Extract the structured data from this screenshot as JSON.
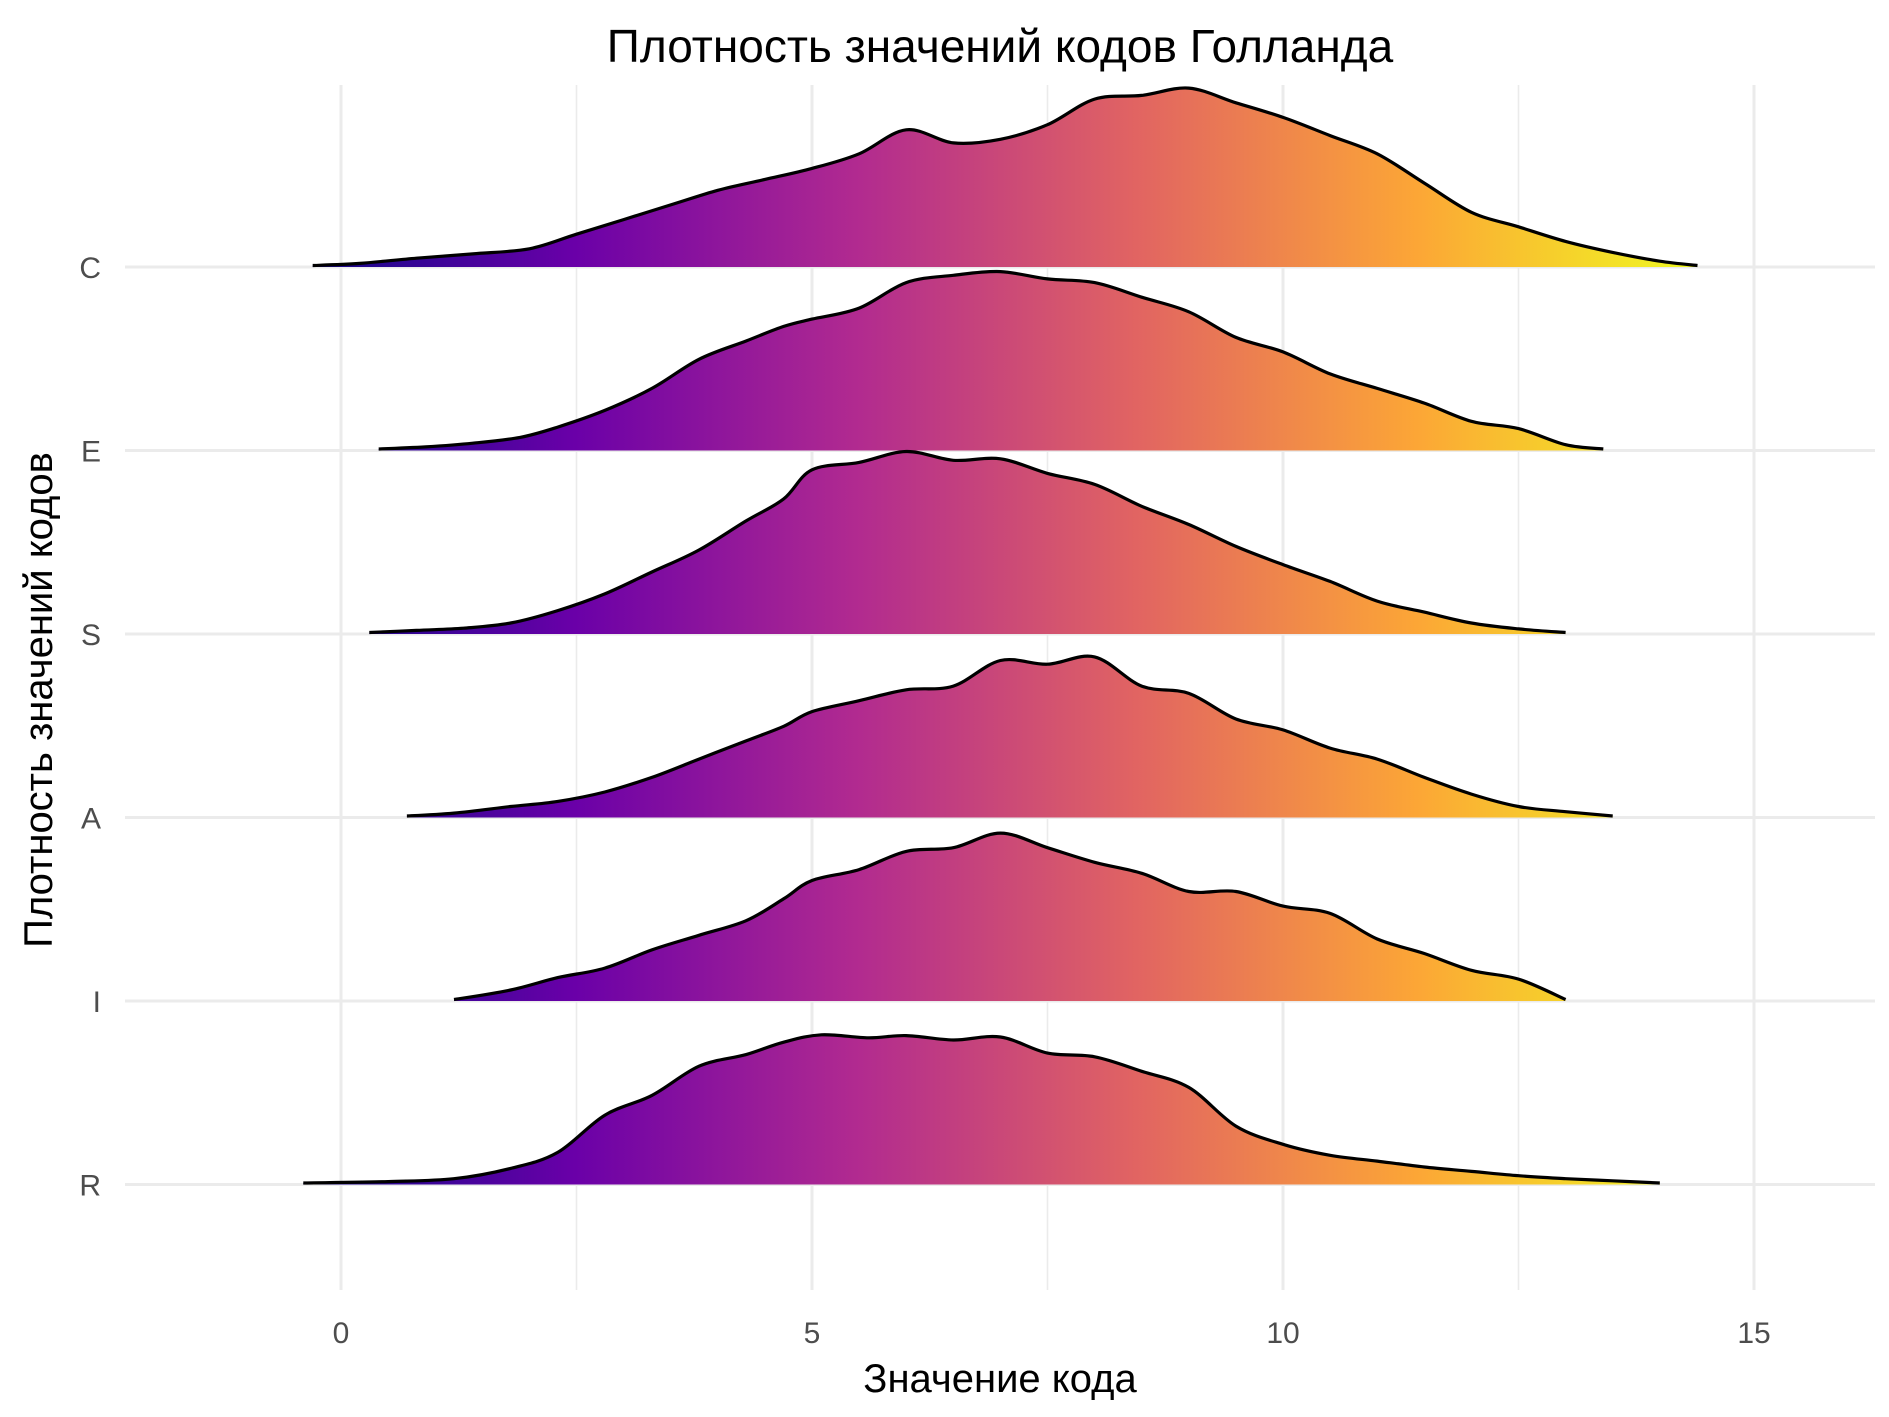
{
  "chart_data": {
    "type": "ridgeline",
    "title": "Плотность значений кодов Голланда",
    "xlabel": "Значение кода",
    "ylabel": "Плотность значений кодов",
    "xlim": [
      -2.3,
      16.3
    ],
    "x_ticks": [
      0,
      5,
      10,
      15
    ],
    "x_tick_labels": [
      "0",
      "5",
      "10",
      "15"
    ],
    "categories": [
      "R",
      "I",
      "A",
      "S",
      "E",
      "C"
    ],
    "grid": true,
    "legend": "none",
    "fill_gradient": {
      "colormap": "plasma",
      "range": [
        -0.5,
        14.4
      ],
      "stops": [
        "#0d0887",
        "#6a00a8",
        "#b12a90",
        "#e16462",
        "#fca636",
        "#f0f921"
      ]
    },
    "series": [
      {
        "category": "R",
        "x": [
          -0.4,
          0.5,
          1.2,
          1.8,
          2.3,
          2.8,
          3.3,
          3.8,
          4.3,
          4.7,
          5.1,
          5.6,
          6.0,
          6.5,
          7.0,
          7.5,
          8.0,
          8.5,
          9.0,
          9.5,
          10.0,
          10.5,
          11.0,
          11.5,
          12.0,
          12.5,
          13.0,
          13.5,
          14.0
        ],
        "y": [
          0.02,
          0.04,
          0.08,
          0.22,
          0.44,
          0.95,
          1.22,
          1.62,
          1.78,
          1.95,
          2.05,
          2.01,
          2.04,
          1.98,
          2.02,
          1.8,
          1.75,
          1.55,
          1.33,
          0.8,
          0.55,
          0.4,
          0.32,
          0.24,
          0.18,
          0.12,
          0.08,
          0.05,
          0.02
        ]
      },
      {
        "category": "I",
        "x": [
          1.2,
          1.8,
          2.3,
          2.8,
          3.3,
          3.8,
          4.3,
          4.7,
          5.0,
          5.5,
          6.0,
          6.5,
          7.0,
          7.5,
          8.0,
          8.5,
          9.0,
          9.5,
          10.0,
          10.5,
          11.0,
          11.5,
          12.0,
          12.5,
          13.0
        ],
        "y": [
          0.02,
          0.15,
          0.32,
          0.45,
          0.7,
          0.9,
          1.1,
          1.4,
          1.65,
          1.8,
          2.05,
          2.1,
          2.3,
          2.1,
          1.9,
          1.75,
          1.5,
          1.5,
          1.3,
          1.2,
          0.85,
          0.65,
          0.42,
          0.3,
          0.02
        ]
      },
      {
        "category": "A",
        "x": [
          0.7,
          1.2,
          1.8,
          2.3,
          2.8,
          3.3,
          3.8,
          4.3,
          4.7,
          5.0,
          5.5,
          6.0,
          6.5,
          7.0,
          7.5,
          8.0,
          8.5,
          9.0,
          9.5,
          10.0,
          10.5,
          11.0,
          11.5,
          12.0,
          12.5,
          13.0,
          13.5
        ],
        "y": [
          0.02,
          0.06,
          0.15,
          0.22,
          0.35,
          0.55,
          0.8,
          1.05,
          1.25,
          1.45,
          1.6,
          1.75,
          1.8,
          2.15,
          2.1,
          2.2,
          1.8,
          1.7,
          1.35,
          1.2,
          0.95,
          0.8,
          0.55,
          0.32,
          0.15,
          0.08,
          0.02
        ]
      },
      {
        "category": "S",
        "x": [
          0.3,
          0.8,
          1.3,
          1.8,
          2.3,
          2.8,
          3.3,
          3.8,
          4.3,
          4.7,
          5.0,
          5.5,
          6.0,
          6.5,
          7.0,
          7.5,
          8.0,
          8.5,
          9.0,
          9.5,
          10.0,
          10.5,
          11.0,
          11.5,
          12.0,
          12.5,
          13.0
        ],
        "y": [
          0.02,
          0.05,
          0.08,
          0.15,
          0.32,
          0.55,
          0.85,
          1.15,
          1.55,
          1.85,
          2.25,
          2.35,
          2.5,
          2.38,
          2.4,
          2.2,
          2.05,
          1.75,
          1.5,
          1.2,
          0.95,
          0.72,
          0.45,
          0.3,
          0.15,
          0.07,
          0.02
        ]
      },
      {
        "category": "E",
        "x": [
          0.4,
          0.9,
          1.4,
          1.9,
          2.3,
          2.8,
          3.3,
          3.8,
          4.3,
          4.7,
          5.0,
          5.5,
          6.0,
          6.5,
          7.0,
          7.5,
          8.0,
          8.5,
          9.0,
          9.5,
          10.0,
          10.5,
          11.0,
          11.5,
          12.0,
          12.5,
          13.0,
          13.4
        ],
        "y": [
          0.02,
          0.05,
          0.1,
          0.18,
          0.32,
          0.55,
          0.85,
          1.25,
          1.5,
          1.7,
          1.8,
          1.95,
          2.3,
          2.4,
          2.45,
          2.35,
          2.3,
          2.1,
          1.9,
          1.55,
          1.35,
          1.05,
          0.85,
          0.65,
          0.4,
          0.3,
          0.08,
          0.02
        ]
      },
      {
        "category": "C",
        "x": [
          -0.3,
          0.2,
          0.8,
          1.4,
          2.0,
          2.5,
          3.0,
          3.5,
          4.0,
          4.5,
          5.0,
          5.5,
          6.0,
          6.5,
          7.0,
          7.5,
          8.0,
          8.5,
          9.0,
          9.5,
          10.0,
          10.5,
          11.0,
          11.5,
          12.0,
          12.5,
          13.0,
          13.5,
          14.0,
          14.4
        ],
        "y": [
          0.02,
          0.05,
          0.12,
          0.18,
          0.25,
          0.45,
          0.65,
          0.85,
          1.05,
          1.2,
          1.35,
          1.55,
          1.88,
          1.7,
          1.75,
          1.95,
          2.3,
          2.35,
          2.45,
          2.25,
          2.05,
          1.8,
          1.55,
          1.15,
          0.75,
          0.55,
          0.35,
          0.2,
          0.08,
          0.02
        ]
      }
    ]
  }
}
